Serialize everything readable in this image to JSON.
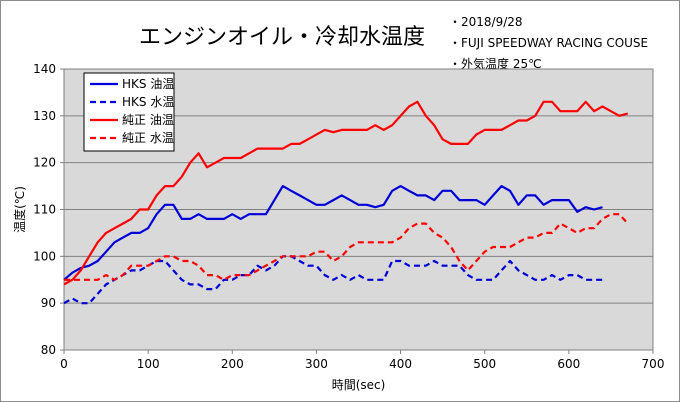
{
  "title": "エンジンオイル・冷却水温度",
  "notes": [
    "・2018/9/28",
    "・FUJI SPEEDWAY RACING COUSE",
    "・外気温度 25℃"
  ],
  "chart_data": {
    "type": "line",
    "title": "エンジンオイル・冷却水温度",
    "xlabel": "時間(sec)",
    "ylabel": "温度(℃)",
    "xlim": [
      0,
      700
    ],
    "ylim": [
      80,
      140
    ],
    "xticks": [
      0,
      100,
      200,
      300,
      400,
      500,
      600,
      700
    ],
    "yticks": [
      80,
      90,
      100,
      110,
      120,
      130,
      140
    ],
    "grid": true,
    "background": "#d9d9d9",
    "legend_position": "top-left",
    "series": [
      {
        "name": "HKS 油温",
        "color": "#0000d8",
        "style": "solid",
        "x": [
          0,
          10,
          20,
          30,
          40,
          50,
          60,
          70,
          80,
          90,
          100,
          110,
          120,
          130,
          140,
          150,
          160,
          170,
          180,
          190,
          200,
          210,
          220,
          230,
          240,
          250,
          260,
          270,
          280,
          290,
          300,
          310,
          320,
          330,
          340,
          350,
          360,
          370,
          380,
          390,
          400,
          410,
          420,
          430,
          440,
          450,
          460,
          470,
          480,
          490,
          500,
          510,
          520,
          530,
          540,
          550,
          560,
          570,
          580,
          590,
          600,
          610,
          620,
          630,
          640
        ],
        "y": [
          95,
          96.5,
          97.5,
          98,
          99,
          101,
          103,
          104,
          105,
          105,
          106,
          109,
          111,
          111,
          108,
          108,
          109,
          108,
          108,
          108,
          109,
          108,
          109,
          109,
          109,
          112,
          115,
          114,
          113,
          112,
          111,
          111,
          112,
          113,
          112,
          111,
          111,
          110.5,
          111,
          114,
          115,
          114,
          113,
          113,
          112,
          114,
          114,
          112,
          112,
          112,
          111,
          113,
          115,
          114,
          111,
          113,
          113,
          111,
          112,
          112,
          112,
          109.5,
          110.5,
          110,
          110.5
        ]
      },
      {
        "name": "HKS 水温",
        "color": "#0000d8",
        "style": "dashed",
        "x": [
          0,
          10,
          20,
          30,
          40,
          50,
          60,
          70,
          80,
          90,
          100,
          110,
          120,
          130,
          140,
          150,
          160,
          170,
          180,
          190,
          200,
          210,
          220,
          230,
          240,
          250,
          260,
          270,
          280,
          290,
          300,
          310,
          320,
          330,
          340,
          350,
          360,
          370,
          380,
          390,
          400,
          410,
          420,
          430,
          440,
          450,
          460,
          470,
          480,
          490,
          500,
          510,
          520,
          530,
          540,
          550,
          560,
          570,
          580,
          590,
          600,
          610,
          620,
          630,
          640
        ],
        "y": [
          90,
          91,
          90,
          90,
          92,
          94,
          95,
          96,
          97,
          97,
          98,
          99,
          99,
          97,
          95,
          94,
          94,
          93,
          93,
          95,
          95,
          96,
          96,
          98,
          97,
          98,
          100,
          100,
          99,
          98,
          98,
          96,
          95,
          96,
          95,
          96,
          95,
          95,
          95,
          99,
          99,
          98,
          98,
          98,
          99,
          98,
          98,
          98,
          96,
          95,
          95,
          95,
          97,
          99,
          97,
          96,
          95,
          95,
          96,
          95,
          96,
          96,
          95,
          95,
          95
        ]
      },
      {
        "name": "純正 油温",
        "color": "#ff0000",
        "style": "solid",
        "x": [
          0,
          10,
          20,
          30,
          40,
          50,
          60,
          70,
          80,
          90,
          100,
          110,
          120,
          130,
          140,
          150,
          160,
          170,
          180,
          190,
          200,
          210,
          220,
          230,
          240,
          250,
          260,
          270,
          280,
          290,
          300,
          310,
          320,
          330,
          340,
          350,
          360,
          370,
          380,
          390,
          400,
          410,
          420,
          430,
          440,
          450,
          460,
          470,
          480,
          490,
          500,
          510,
          520,
          530,
          540,
          550,
          560,
          570,
          580,
          590,
          600,
          610,
          620,
          630,
          640,
          650,
          660,
          670
        ],
        "y": [
          94,
          95,
          97,
          100,
          103,
          105,
          106,
          107,
          108,
          110,
          110,
          113,
          115,
          115,
          117,
          120,
          122,
          119,
          120,
          121,
          121,
          121,
          122,
          123,
          123,
          123,
          123,
          124,
          124,
          125,
          126,
          127,
          126.5,
          127,
          127,
          127,
          127,
          128,
          127,
          128,
          130,
          132,
          133,
          130,
          128,
          125,
          124,
          124,
          124,
          126,
          127,
          127,
          127,
          128,
          129,
          129,
          130,
          133,
          133,
          131,
          131,
          131,
          133,
          131,
          132,
          131,
          130,
          130.5
        ]
      },
      {
        "name": "純正 水温",
        "color": "#ff0000",
        "style": "dashed",
        "x": [
          0,
          10,
          20,
          30,
          40,
          50,
          60,
          70,
          80,
          90,
          100,
          110,
          120,
          130,
          140,
          150,
          160,
          170,
          180,
          190,
          200,
          210,
          220,
          230,
          240,
          250,
          260,
          270,
          280,
          290,
          300,
          310,
          320,
          330,
          340,
          350,
          360,
          370,
          380,
          390,
          400,
          410,
          420,
          430,
          440,
          450,
          460,
          470,
          480,
          490,
          500,
          510,
          520,
          530,
          540,
          550,
          560,
          570,
          580,
          590,
          600,
          610,
          620,
          630,
          640,
          650,
          660,
          670
        ],
        "y": [
          95,
          95,
          95,
          95,
          95,
          96,
          95,
          96,
          98,
          98,
          98,
          99,
          100,
          100,
          99,
          99,
          98,
          96,
          96,
          95,
          96,
          96,
          96,
          97,
          98,
          99,
          100,
          100,
          100,
          100,
          101,
          101,
          99,
          100,
          102,
          103,
          103,
          103,
          103,
          103,
          104,
          106,
          107,
          107,
          105,
          104,
          102,
          99,
          97,
          99,
          101,
          102,
          102,
          102,
          103,
          104,
          104,
          105,
          105,
          107,
          106,
          105,
          106,
          106,
          108,
          109,
          109,
          107
        ]
      }
    ]
  }
}
